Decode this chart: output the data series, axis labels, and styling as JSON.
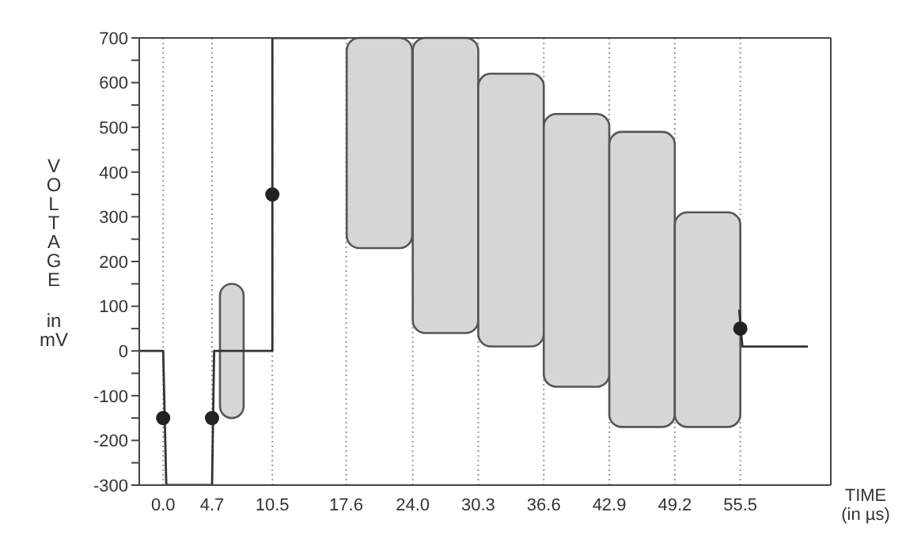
{
  "chart_data": {
    "type": "line",
    "xlabel": "TIME (in µs)",
    "ylabel": "VOLTAGE in mV",
    "xlim": [
      -2.3,
      64.2
    ],
    "ylim": [
      -300,
      700
    ],
    "xticks": [
      {
        "value": 0,
        "label": "0.0"
      },
      4.7,
      10.5,
      17.6,
      {
        "value": 24,
        "label": "24.0"
      },
      30.3,
      36.6,
      42.9,
      49.2,
      55.5
    ],
    "yticks": [
      -300,
      {
        "value": -250,
        "label": null
      },
      -200,
      {
        "value": -150,
        "label": null
      },
      -100,
      {
        "value": -50,
        "label": null
      },
      0,
      {
        "value": 50,
        "label": null
      },
      100,
      {
        "value": 150,
        "label": null
      },
      200,
      {
        "value": 250,
        "label": null
      },
      300,
      {
        "value": 350,
        "label": null
      },
      400,
      {
        "value": 450,
        "label": null
      },
      500,
      {
        "value": 550,
        "label": null
      },
      600,
      {
        "value": 650,
        "label": null
      },
      700
    ],
    "grid": "x",
    "line_style": "solid",
    "series": [
      {
        "type": "bar",
        "color": "#d6d6d6",
        "x": [
          6.6
        ],
        "base": [
          -150
        ],
        "values": [
          300
        ]
      },
      {
        "type": "bar",
        "color": "#d6d6d6",
        "x": [
          20.8,
          27.15,
          33.45,
          39.75,
          46.05,
          52.35
        ],
        "base": [
          230,
          40,
          10,
          -80,
          -170,
          -170
        ],
        "values": [
          470,
          660,
          610,
          610,
          660,
          480
        ]
      },
      {
        "color": "#333333",
        "marker": "none",
        "x": [
          -2.3,
          0,
          0.3,
          4.7,
          4.9,
          10.5,
          10.5,
          17.6
        ],
        "values": [
          0,
          0,
          -300,
          -300,
          0,
          0,
          700,
          700
        ]
      },
      {
        "color": "#333333",
        "marker": "none",
        "x": [
          55.3,
          55.4,
          55.7,
          62
        ],
        "values": [
          90,
          90,
          10,
          10
        ]
      },
      {
        "type": "scatter",
        "color": "#222222",
        "marker": "circle",
        "x": [
          0,
          4.7,
          10.5,
          55.5
        ],
        "values": [
          -150,
          -150,
          350,
          50
        ]
      }
    ]
  }
}
